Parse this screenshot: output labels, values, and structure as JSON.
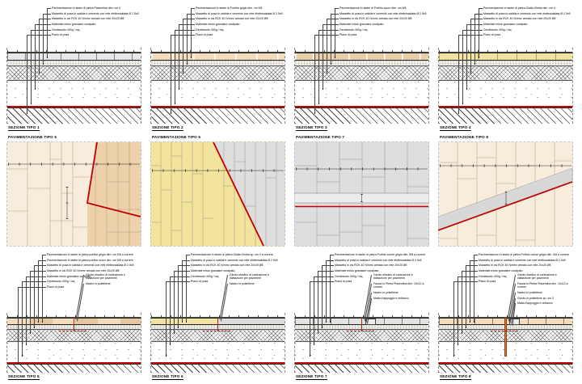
{
  "colors": {
    "accent_red": "#c00000",
    "joint_orange": "#e2762d",
    "slab_tan": "#f3dcbb",
    "slab_yellow": "#f0e3a2",
    "plan_peach": "#f8ecdc",
    "plan_tan": "#ecd1ab",
    "plan_yellow": "#f3e49d",
    "plan_gray": "#dedede"
  },
  "sections_top": [
    {
      "title": "SEZIONE TIPO 1",
      "annotations": [
        "Pavimentazione in lastre di pietra Piasentina dim. cm 4",
        "Massetto di posa in sabbia e cemento con rete elettrosaldata Ø 2 5x5",
        "Massetto in cls RCK 40 N/mm² armato con rete 20x20 Ø8",
        "Materiale misto granulare costipato",
        "Geotessuto 400g / mq",
        "Piano di posa"
      ]
    },
    {
      "title": "SEZIONE TIPO 2",
      "annotations": [
        "Pavimentazione in lastre di Porfido grigio dim. cm 5/8",
        "Massetto di posa in sabbia e cemento con rete elettrosaldata Ø 2 5x5",
        "Massetto in cls RCK 40 N/mm² armato con rete 20x20 Ø8",
        "Materiale misto granulare costipato",
        "Geotessuto 400g / mq",
        "Piano di posa"
      ]
    },
    {
      "title": "SEZIONE TIPO 3",
      "annotations": [
        "Pavimentazione in lastre di Porfido scuro dim. cm 5/8",
        "Massetto di posa in sabbia e cemento con rete elettrosaldata Ø 2 5x5",
        "Massetto in cls RCK 40 N/mm² armato con rete 20x20 Ø8",
        "Materiale misto granulare costipato",
        "Geotessuto 400g / mq",
        "Piano di posa"
      ]
    },
    {
      "title": "SEZIONE TIPO 4",
      "annotations": [
        "Pavimentazione in lastre di pietra Gialla d'Istria dim. cm 4",
        "Massetto di posa in sabbia e cemento con rete elettrosaldata Ø 2 5x5",
        "Massetto in cls RCK 40 N/mm² armato con rete 20x20 Ø8",
        "Materiale misto granulare costipato",
        "Geotessuto 400g / mq",
        "Piano di posa"
      ]
    }
  ],
  "pavements": [
    {
      "title": "PAVIMENTAZIONE TIPO 5"
    },
    {
      "title": "PAVIMENTAZIONE TIPO 6"
    },
    {
      "title": "PAVIMENTAZIONE TIPO 7"
    },
    {
      "title": "PAVIMENTAZIONE TIPO 8"
    }
  ],
  "sections_bottom": [
    {
      "title": "SEZIONE TIPO 5",
      "annotations_left": [
        "Pavimentazione in lastre di pietra porfido grigio dim. cm 5/8 a correre",
        "Pavimentazione in lastre di pietra porfido scuro dim. cm 5/8 a correre",
        "Massetto di posa in sabbia e cemento con rete elettrosaldata Ø 2 5x5",
        "Massetto in cls RCK 40 N/mm² armato con rete 20x20 Ø8",
        "Materiale misto granulare costipato",
        "Geotessuto 400g / mq",
        "Piano di posa"
      ],
      "annotations_right": [
        "Giunto elastico di contrazione e dilatazione per pavimenti",
        "Nastro in polietilene"
      ]
    },
    {
      "title": "SEZIONE TIPO 6",
      "annotations_left": [
        "Pavimentazione in lastre di pietra Gialla d'Istria sp. cm 4 a correre",
        "Massetto di posa in sabbia e cemento con rete elettrosaldata Ø 2 5x5",
        "Massetto in cls RCK 40 N/mm² armato con rete 20x20 Ø8",
        "Materiale misto granulare costipato",
        "Geotessuto 400g / mq",
        "Piano di posa"
      ],
      "annotations_right": [
        "Giunto elastico di contrazione e dilatazione per pavimenti",
        "Nastro in polietilene"
      ]
    },
    {
      "title": "SEZIONE TIPO 7",
      "annotations_left": [
        "Pavimentazione in lastre di pietra Porfido colore grigio dim. 5/8 a correre",
        "Massetto di posa in sabbia e cemento con rete elettrosaldata Ø 2 5x5",
        "Massetto in cls RCK 40 N/mm² armato con rete 20x20 Ø8",
        "Materiale misto granulare costipato",
        "Geotessuto 400g / mq",
        "Piano di posa"
      ],
      "annotations_right": [
        "Giunto elastico di contrazione e dilatazione per pavimenti",
        "Fascia in Pietra Piasentina dim. 10x12 a correre",
        "Nastro in polietilene",
        "Malta d'appoggio e rinfianco"
      ]
    },
    {
      "title": "SEZIONE TIPO 8",
      "annotations_left": [
        "Pavimentazione in lastre di pietra Porfido colore grigio dim. 5/8 a correre",
        "Massetto di posa in sabbia e cemento con rete elettrosaldata Ø 2 5x5",
        "Massetto in cls RCK 40 N/mm² armato con rete 20x20 Ø8",
        "Materiale misto granulare costipato",
        "Geotessuto 400g / mq",
        "Piano di posa"
      ],
      "annotations_right": [
        "Giunto elastico di contrazione e dilatazione per pavimenti",
        "Fascia in Pietra Piasentina dim. 10x12 a correre",
        "Nastro in polietilene",
        "Giunto in polietilene sp. cm 3",
        "Malta d'appoggio e rinfianco"
      ]
    }
  ]
}
